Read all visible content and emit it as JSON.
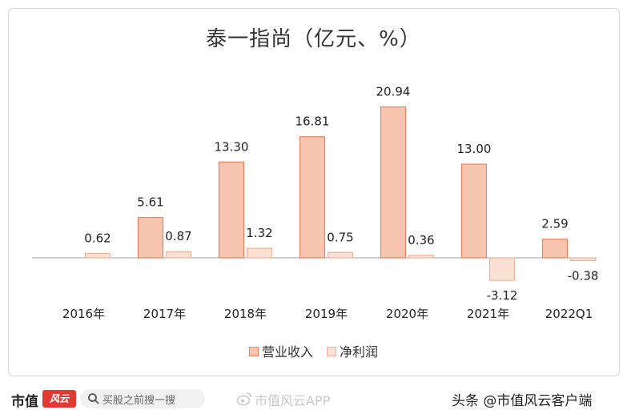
{
  "footer": {
    "logo_text": "市值",
    "logo_mark_text": "风云",
    "search_placeholder": "买股之前搜一搜",
    "watermark_text": "市值风云APP",
    "source_text": "头条 @市值风云客户端"
  },
  "colors": {
    "revenue_fill": "#f8c5b0",
    "revenue_stroke": "#e8845f",
    "profit_fill": "#fbe0d4",
    "profit_stroke": "#efb39b",
    "axis": "#a0a0a0"
  },
  "chart_data": {
    "type": "bar",
    "title": "泰一指尚（亿元、%）",
    "categories": [
      "2016年",
      "2017年",
      "2018年",
      "2019年",
      "2020年",
      "2021年",
      "2022Q1"
    ],
    "series": [
      {
        "name": "营业收入",
        "values": [
          null,
          5.61,
          13.3,
          16.81,
          20.94,
          13.0,
          2.59
        ],
        "labels": [
          "",
          "5.61",
          "13.30",
          "16.81",
          "20.94",
          "13.00",
          "2.59"
        ]
      },
      {
        "name": "净利润",
        "values": [
          0.62,
          0.87,
          1.32,
          0.75,
          0.36,
          -3.12,
          -0.38
        ],
        "labels": [
          "0.62",
          "0.87",
          "1.32",
          "0.75",
          "0.36",
          "-3.12",
          "-0.38"
        ]
      }
    ],
    "legend_position": "bottom",
    "grid": false,
    "ylim": [
      -3.5,
      22
    ]
  }
}
